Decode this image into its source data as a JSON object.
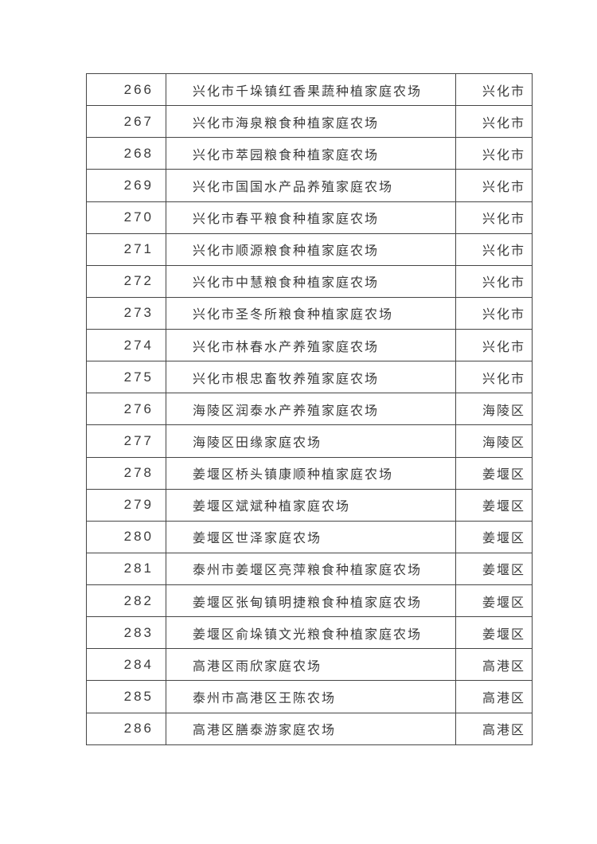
{
  "page": {
    "background_color": "#ffffff",
    "text_color": "#3a3a3a",
    "border_color": "#454545"
  },
  "table": {
    "rows": [
      {
        "index": "266",
        "name": "兴化市千垛镇红香果蔬种植家庭农场",
        "region": "兴化市"
      },
      {
        "index": "267",
        "name": "兴化市海泉粮食种植家庭农场",
        "region": "兴化市"
      },
      {
        "index": "268",
        "name": "兴化市萃园粮食种植家庭农场",
        "region": "兴化市"
      },
      {
        "index": "269",
        "name": "兴化市国国水产品养殖家庭农场",
        "region": "兴化市"
      },
      {
        "index": "270",
        "name": "兴化市春平粮食种植家庭农场",
        "region": "兴化市"
      },
      {
        "index": "271",
        "name": "兴化市顺源粮食种植家庭农场",
        "region": "兴化市"
      },
      {
        "index": "272",
        "name": "兴化市中慧粮食种植家庭农场",
        "region": "兴化市"
      },
      {
        "index": "273",
        "name": "兴化市圣冬所粮食种植家庭农场",
        "region": "兴化市"
      },
      {
        "index": "274",
        "name": "兴化市林春水产养殖家庭农场",
        "region": "兴化市"
      },
      {
        "index": "275",
        "name": "兴化市根忠畜牧养殖家庭农场",
        "region": "兴化市"
      },
      {
        "index": "276",
        "name": "海陵区润泰水产养殖家庭农场",
        "region": "海陵区"
      },
      {
        "index": "277",
        "name": "海陵区田缘家庭农场",
        "region": "海陵区"
      },
      {
        "index": "278",
        "name": "姜堰区桥头镇康顺种植家庭农场",
        "region": "姜堰区"
      },
      {
        "index": "279",
        "name": "姜堰区斌斌种植家庭农场",
        "region": "姜堰区"
      },
      {
        "index": "280",
        "name": "姜堰区世泽家庭农场",
        "region": "姜堰区"
      },
      {
        "index": "281",
        "name": "泰州市姜堰区亮萍粮食种植家庭农场",
        "region": "姜堰区"
      },
      {
        "index": "282",
        "name": "姜堰区张甸镇明捷粮食种植家庭农场",
        "region": "姜堰区"
      },
      {
        "index": "283",
        "name": "姜堰区俞垛镇文光粮食种植家庭农场",
        "region": "姜堰区"
      },
      {
        "index": "284",
        "name": "高港区雨欣家庭农场",
        "region": "高港区"
      },
      {
        "index": "285",
        "name": "泰州市高港区王陈农场",
        "region": "高港区"
      },
      {
        "index": "286",
        "name": "高港区膳泰游家庭农场",
        "region": "高港区"
      }
    ]
  }
}
